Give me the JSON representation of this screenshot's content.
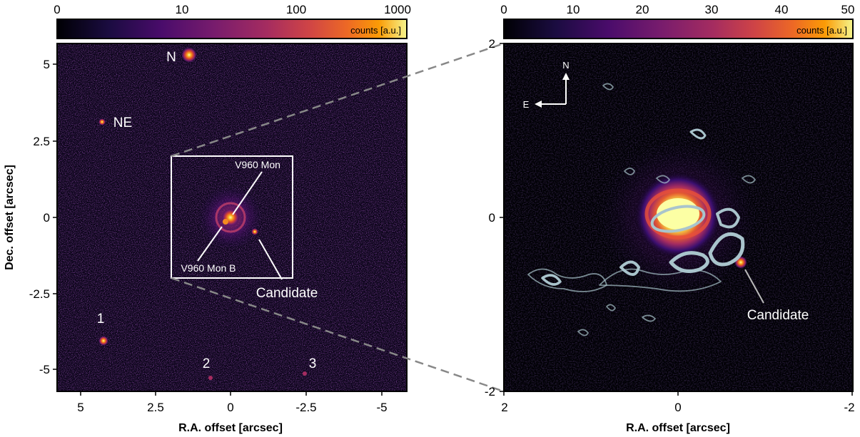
{
  "left_panel": {
    "colorbar": {
      "label": "counts [a.u.]",
      "ticks": [
        "0",
        "10",
        "100",
        "1000"
      ],
      "scale": "log",
      "colormap": "inferno"
    },
    "xlabel": "R.A. offset [arcsec]",
    "ylabel": "Dec. offset [arcsec]",
    "xticks": [
      "5",
      "2.5",
      "0",
      "-2.5",
      "-5"
    ],
    "yticks": [
      "5",
      "2.5",
      "0",
      "-2.5",
      "-5"
    ],
    "annotations": {
      "n": "N",
      "ne": "NE",
      "s1": "1",
      "s2": "2",
      "s3": "3",
      "primary": "V960 Mon",
      "companion": "V960 Mon B",
      "candidate": "Candidate"
    }
  },
  "right_panel": {
    "colorbar": {
      "label": "counts [a.u.]",
      "ticks": [
        "0",
        "10",
        "20",
        "30",
        "40",
        "50"
      ],
      "scale": "linear",
      "colormap": "inferno"
    },
    "xlabel": "R.A. offset [arcsec]",
    "xticks": [
      "2",
      "0",
      "-2"
    ],
    "yticks": [
      "2",
      "0",
      "-2"
    ],
    "compass": {
      "north": "N",
      "east": "E"
    },
    "annotations": {
      "candidate": "Candidate"
    },
    "contour_color": "#a9c4cc"
  }
}
